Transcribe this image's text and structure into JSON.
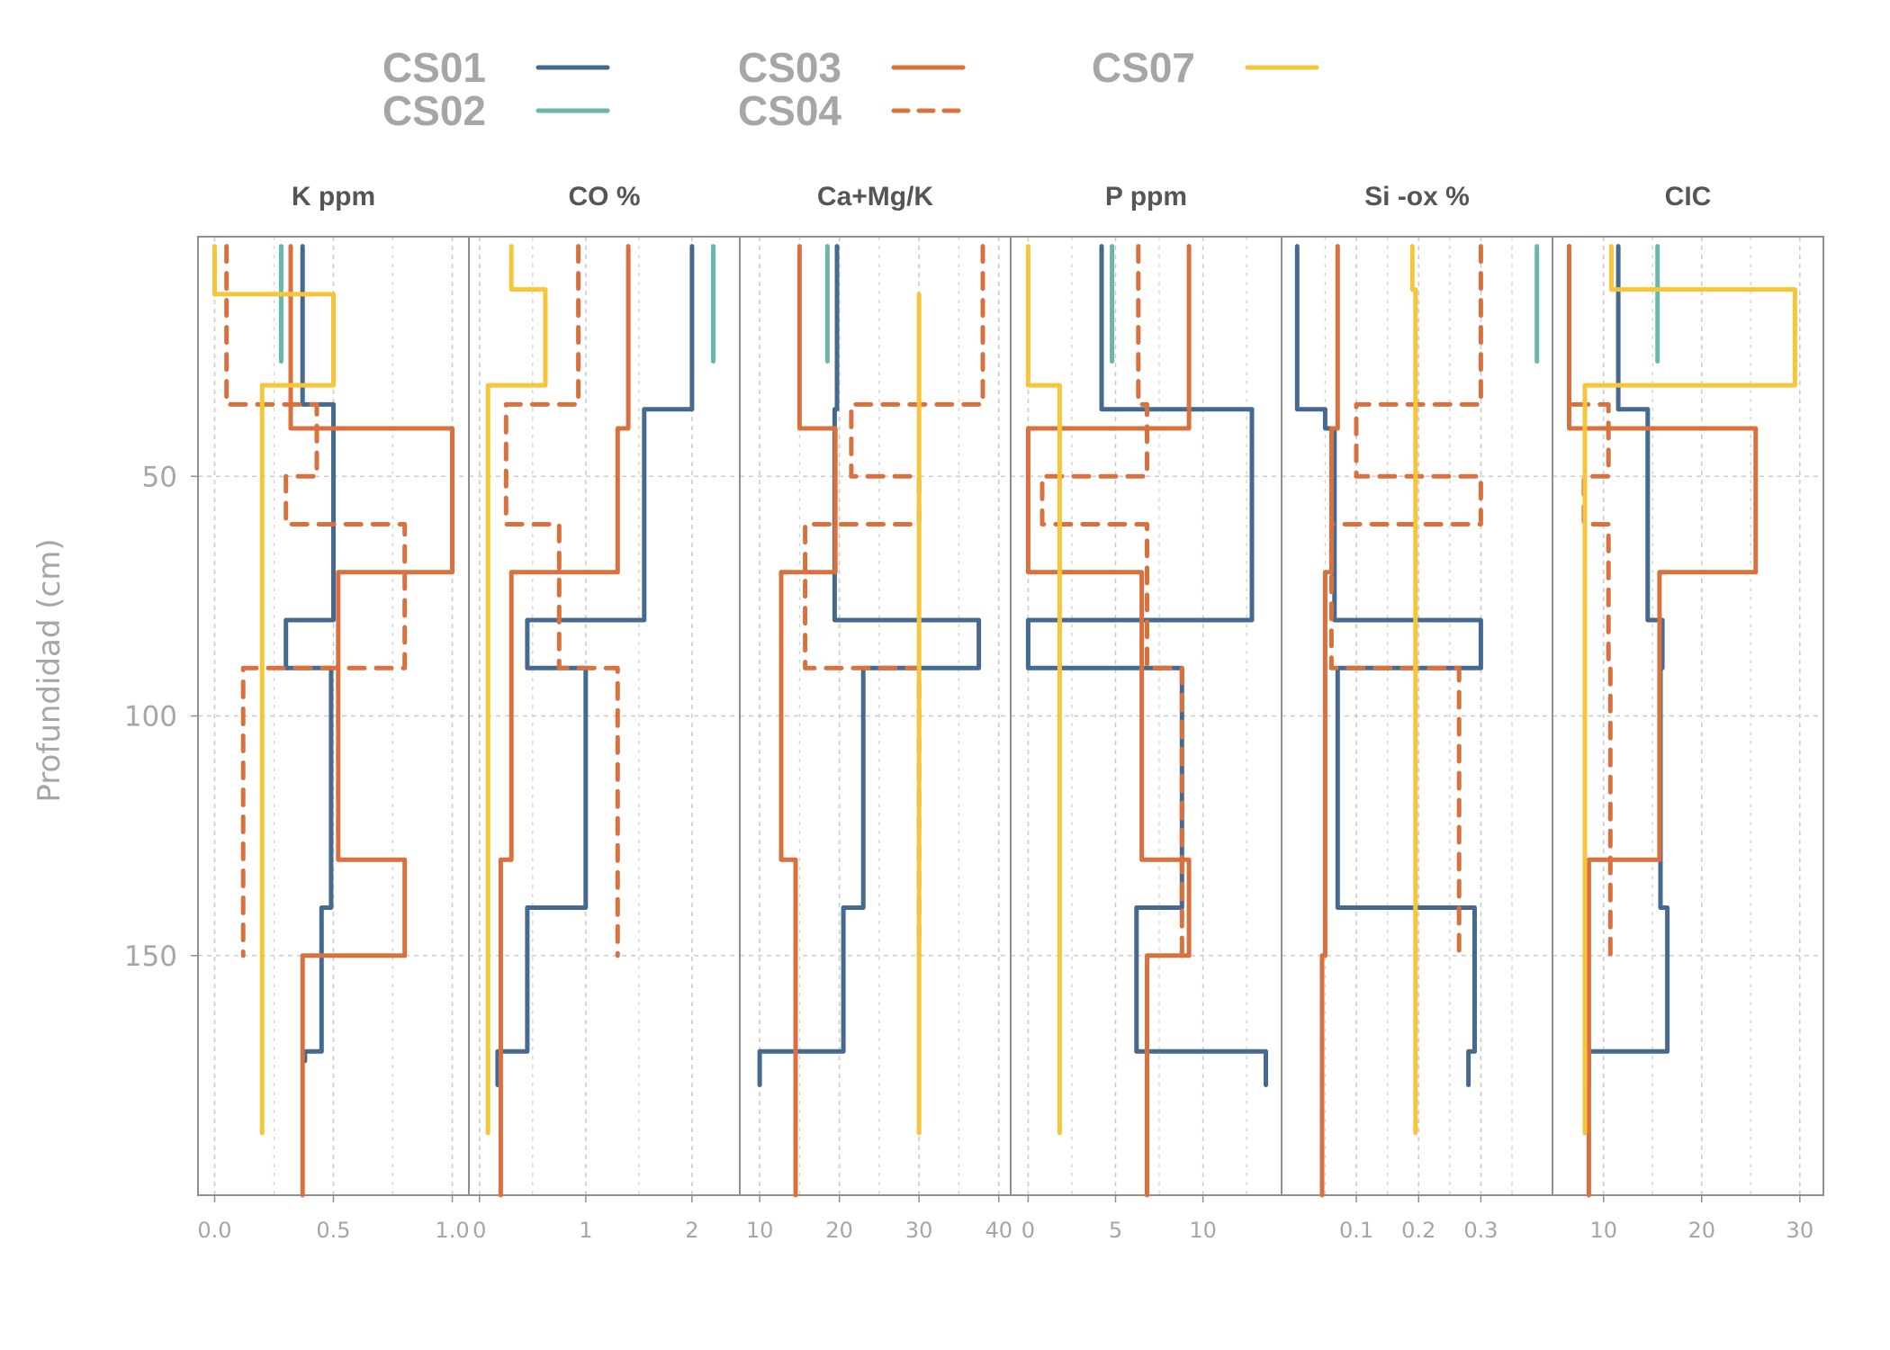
{
  "chart_data": {
    "type": "line",
    "ylabel": "Profundidad (cm)",
    "ylim": [
      200,
      0
    ],
    "y_ticks": [
      50,
      100,
      150
    ],
    "grid": true,
    "legend_position": "top",
    "legend": [
      {
        "name": "CS01",
        "color": "#45698f",
        "dash": "solid"
      },
      {
        "name": "CS02",
        "color": "#69b7a8",
        "dash": "solid"
      },
      {
        "name": "CS03",
        "color": "#d9713e",
        "dash": "solid"
      },
      {
        "name": "CS04",
        "color": "#d9713e",
        "dash": "dashed"
      },
      {
        "name": "CS07",
        "color": "#f6c53a",
        "dash": "solid"
      }
    ],
    "panels": [
      {
        "title": "K ppm",
        "xlim": [
          -0.07,
          1.07
        ],
        "x_ticks": [
          0.0,
          0.5,
          1.0
        ],
        "x_tick_labels": [
          "0.0",
          "0.5",
          "1.0"
        ],
        "minor_ticks": [
          0.25,
          0.75
        ],
        "series": {
          "CS01": [
            [
              0.37,
              2
            ],
            [
              0.37,
              35
            ],
            [
              0.5,
              35
            ],
            [
              0.5,
              80
            ],
            [
              0.3,
              80
            ],
            [
              0.3,
              90
            ],
            [
              0.49,
              90
            ],
            [
              0.49,
              140
            ],
            [
              0.45,
              140
            ],
            [
              0.45,
              170
            ],
            [
              0.38,
              170
            ],
            [
              0.38,
              172
            ]
          ],
          "CS02": [
            [
              0.28,
              2
            ],
            [
              0.28,
              26
            ]
          ],
          "CS03": [
            [
              0.32,
              2
            ],
            [
              0.32,
              40
            ],
            [
              1.0,
              40
            ],
            [
              1.0,
              70
            ],
            [
              0.52,
              70
            ],
            [
              0.52,
              130
            ],
            [
              0.8,
              130
            ],
            [
              0.8,
              150
            ],
            [
              0.37,
              150
            ],
            [
              0.37,
              200
            ]
          ],
          "CS04": [
            [
              0.05,
              2
            ],
            [
              0.05,
              35
            ],
            [
              0.43,
              35
            ],
            [
              0.43,
              50
            ],
            [
              0.3,
              50
            ],
            [
              0.3,
              60
            ],
            [
              0.8,
              60
            ],
            [
              0.8,
              90
            ],
            [
              0.12,
              90
            ],
            [
              0.12,
              150
            ]
          ],
          "CS07": [
            [
              0.0,
              2
            ],
            [
              0.0,
              12
            ],
            [
              0.5,
              12
            ],
            [
              0.5,
              31
            ],
            [
              0.2,
              31
            ],
            [
              0.2,
              187
            ]
          ]
        }
      },
      {
        "title": "CO %",
        "xlim": [
          -0.1,
          2.45
        ],
        "x_ticks": [
          0,
          1,
          2
        ],
        "x_tick_labels": [
          "0",
          "1",
          "2"
        ],
        "minor_ticks": [
          0.5,
          1.5
        ],
        "series": {
          "CS01": [
            [
              2.0,
              2
            ],
            [
              2.0,
              36
            ],
            [
              1.55,
              36
            ],
            [
              1.55,
              80
            ],
            [
              0.45,
              80
            ],
            [
              0.45,
              90
            ],
            [
              1.0,
              90
            ],
            [
              1.0,
              140
            ],
            [
              0.45,
              140
            ],
            [
              0.45,
              170
            ],
            [
              0.17,
              170
            ],
            [
              0.17,
              177
            ]
          ],
          "CS02": [
            [
              2.2,
              2
            ],
            [
              2.2,
              26
            ]
          ],
          "CS03": [
            [
              1.4,
              2
            ],
            [
              1.4,
              40
            ],
            [
              1.3,
              40
            ],
            [
              1.3,
              70
            ],
            [
              0.3,
              70
            ],
            [
              0.3,
              130
            ],
            [
              0.2,
              130
            ],
            [
              0.2,
              200
            ]
          ],
          "CS04": [
            [
              0.93,
              2
            ],
            [
              0.93,
              35
            ],
            [
              0.25,
              35
            ],
            [
              0.25,
              60
            ],
            [
              0.75,
              60
            ],
            [
              0.75,
              90
            ],
            [
              1.3,
              90
            ],
            [
              1.3,
              150
            ]
          ],
          "CS07": [
            [
              0.3,
              2
            ],
            [
              0.3,
              11
            ],
            [
              0.62,
              11
            ],
            [
              0.62,
              31
            ],
            [
              0.08,
              31
            ],
            [
              0.08,
              187
            ]
          ]
        }
      },
      {
        "title": "Ca+Mg/K",
        "xlim": [
          7.5,
          41.5
        ],
        "x_ticks": [
          10,
          20,
          30,
          40
        ],
        "x_tick_labels": [
          "10",
          "20",
          "30",
          "40"
        ],
        "minor_ticks": [
          15,
          25,
          35
        ],
        "series": {
          "CS01": [
            [
              19.7,
              2
            ],
            [
              19.7,
              36
            ],
            [
              19.4,
              36
            ],
            [
              19.4,
              80
            ],
            [
              37.5,
              80
            ],
            [
              37.5,
              90
            ],
            [
              23,
              90
            ],
            [
              23,
              140
            ],
            [
              20.5,
              140
            ],
            [
              20.5,
              170
            ],
            [
              10,
              170
            ],
            [
              10,
              177
            ]
          ],
          "CS02": [
            [
              18.5,
              2
            ],
            [
              18.5,
              26
            ]
          ],
          "CS03": [
            [
              15,
              2
            ],
            [
              15,
              40
            ],
            [
              19.5,
              40
            ],
            [
              19.5,
              70
            ],
            [
              12.7,
              70
            ],
            [
              12.7,
              130
            ],
            [
              14.5,
              130
            ],
            [
              14.5,
              200
            ]
          ],
          "CS04": [
            [
              38,
              2
            ],
            [
              38,
              35
            ],
            [
              21.5,
              35
            ],
            [
              21.5,
              50
            ],
            [
              30,
              50
            ],
            [
              30,
              60
            ],
            [
              15.7,
              60
            ],
            [
              15.7,
              90
            ],
            [
              30,
              90
            ],
            [
              30,
              150
            ]
          ],
          "CS07": [
            [
              30,
              12
            ],
            [
              30,
              187
            ]
          ]
        }
      },
      {
        "title": "P ppm",
        "xlim": [
          -1,
          14.5
        ],
        "x_ticks": [
          0,
          5,
          10
        ],
        "x_tick_labels": [
          "0",
          "5",
          "10"
        ],
        "minor_ticks": [
          2.5,
          7.5,
          12.5
        ],
        "series": {
          "CS01": [
            [
              4.2,
              2
            ],
            [
              4.2,
              36
            ],
            [
              12.8,
              36
            ],
            [
              12.8,
              80
            ],
            [
              0,
              80
            ],
            [
              0,
              90
            ],
            [
              8.8,
              90
            ],
            [
              8.8,
              140
            ],
            [
              6.2,
              140
            ],
            [
              6.2,
              170
            ],
            [
              13.6,
              170
            ],
            [
              13.6,
              177
            ]
          ],
          "CS02": [
            [
              4.8,
              2
            ],
            [
              4.8,
              26
            ]
          ],
          "CS03": [
            [
              9.2,
              2
            ],
            [
              9.2,
              40
            ],
            [
              0,
              40
            ],
            [
              0,
              70
            ],
            [
              6.5,
              70
            ],
            [
              6.5,
              130
            ],
            [
              9.2,
              130
            ],
            [
              9.2,
              150
            ],
            [
              6.8,
              150
            ],
            [
              6.8,
              200
            ]
          ],
          "CS04": [
            [
              6.3,
              2
            ],
            [
              6.3,
              35
            ],
            [
              6.8,
              35
            ],
            [
              6.8,
              50
            ],
            [
              0.8,
              50
            ],
            [
              0.8,
              60
            ],
            [
              6.8,
              60
            ],
            [
              6.8,
              90
            ],
            [
              8.8,
              90
            ],
            [
              8.8,
              150
            ]
          ],
          "CS07": [
            [
              0,
              2
            ],
            [
              0,
              31
            ],
            [
              1.8,
              31
            ],
            [
              1.8,
              187
            ]
          ]
        }
      },
      {
        "title": "Si -ox %",
        "xlim": [
          -0.02,
          0.415
        ],
        "x_ticks": [
          0.1,
          0.2,
          0.3
        ],
        "x_tick_labels": [
          "0.1",
          "0.2",
          "0.3"
        ],
        "minor_ticks": [
          0.05,
          0.15,
          0.25,
          0.35
        ],
        "series": {
          "CS01": [
            [
              0.005,
              2
            ],
            [
              0.005,
              36
            ],
            [
              0.05,
              36
            ],
            [
              0.05,
              40
            ],
            [
              0.065,
              40
            ],
            [
              0.065,
              80
            ],
            [
              0.3,
              80
            ],
            [
              0.3,
              90
            ],
            [
              0.07,
              90
            ],
            [
              0.07,
              140
            ],
            [
              0.29,
              140
            ],
            [
              0.29,
              170
            ],
            [
              0.28,
              170
            ],
            [
              0.28,
              177
            ]
          ],
          "CS02": [
            [
              0.39,
              2
            ],
            [
              0.39,
              26
            ]
          ],
          "CS03": [
            [
              0.07,
              2
            ],
            [
              0.07,
              40
            ],
            [
              0.06,
              40
            ],
            [
              0.06,
              70
            ],
            [
              0.05,
              70
            ],
            [
              0.05,
              150
            ],
            [
              0.045,
              150
            ],
            [
              0.045,
              200
            ]
          ],
          "CS04": [
            [
              0.3,
              2
            ],
            [
              0.3,
              35
            ],
            [
              0.1,
              35
            ],
            [
              0.1,
              50
            ],
            [
              0.3,
              50
            ],
            [
              0.3,
              60
            ],
            [
              0.06,
              60
            ],
            [
              0.06,
              90
            ],
            [
              0.265,
              90
            ],
            [
              0.265,
              150
            ]
          ],
          "CS07": [
            [
              0.19,
              2
            ],
            [
              0.19,
              11
            ],
            [
              0.195,
              11
            ],
            [
              0.195,
              187
            ]
          ]
        }
      },
      {
        "title": "CIC",
        "xlim": [
          4.8,
          32.4
        ],
        "x_ticks": [
          10,
          20,
          30
        ],
        "x_tick_labels": [
          "10",
          "20",
          "30"
        ],
        "minor_ticks": [
          15,
          25
        ],
        "series": {
          "CS01": [
            [
              11.5,
              2
            ],
            [
              11.5,
              36
            ],
            [
              14.5,
              36
            ],
            [
              14.5,
              80
            ],
            [
              16,
              80
            ],
            [
              16,
              90
            ],
            [
              15.8,
              90
            ],
            [
              15.8,
              140
            ],
            [
              16.5,
              140
            ],
            [
              16.5,
              170
            ],
            [
              8.5,
              170
            ],
            [
              8.5,
              177
            ]
          ],
          "CS02": [
            [
              15.5,
              2
            ],
            [
              15.5,
              26
            ]
          ],
          "CS03": [
            [
              6.5,
              2
            ],
            [
              6.5,
              40
            ],
            [
              25.5,
              40
            ],
            [
              25.5,
              70
            ],
            [
              15.7,
              70
            ],
            [
              15.7,
              130
            ],
            [
              8.5,
              130
            ],
            [
              8.5,
              200
            ]
          ],
          "CS04": [
            [
              6.5,
              2
            ],
            [
              6.5,
              35
            ],
            [
              10.5,
              35
            ],
            [
              10.5,
              50
            ],
            [
              8,
              50
            ],
            [
              8,
              60
            ],
            [
              10.5,
              60
            ],
            [
              10.5,
              90
            ],
            [
              10.7,
              90
            ],
            [
              10.7,
              150
            ]
          ],
          "CS07": [
            [
              10.8,
              2
            ],
            [
              10.8,
              11
            ],
            [
              29.5,
              11
            ],
            [
              29.5,
              31
            ],
            [
              8.1,
              31
            ],
            [
              8.1,
              187
            ]
          ]
        }
      }
    ]
  }
}
